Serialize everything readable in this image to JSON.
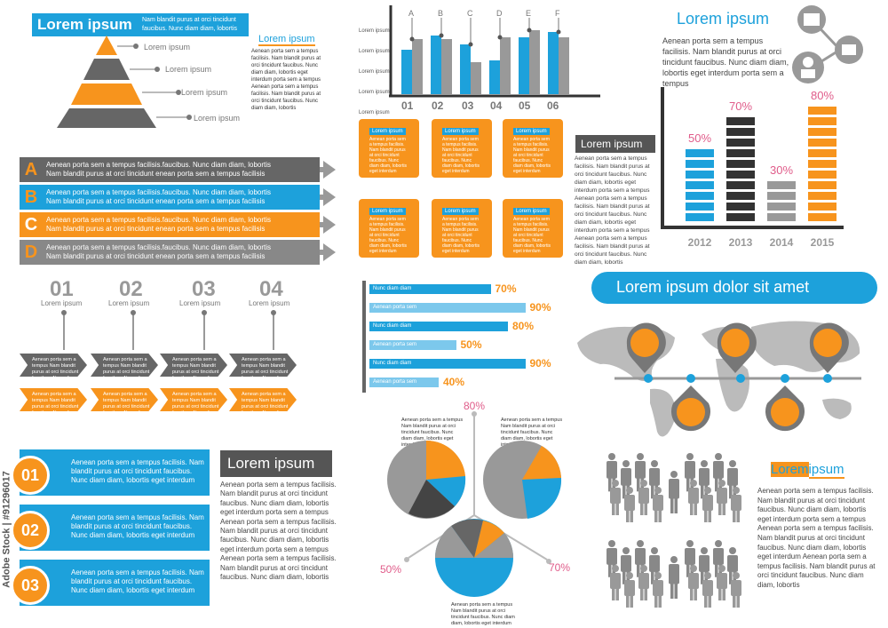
{
  "pyramid": {
    "header_title": "Lorem ipsum",
    "header_text": "Nam blandit purus at orci tincidunt faucibus. Nunc diam diam, lobortis",
    "labels": [
      "Lorem ipsum",
      "Lorem ipsum",
      "Lorem ipsum",
      "Lorem ipsum"
    ],
    "side_title": "Lorem ipsum",
    "side_text": "Aenean porta sem a tempus facilisis. Nam blandit purus at orci tincidunt faucibus. Nunc diam diam, lobortis eget interdum porta sem a tempus Aenean porta sem a tempus facilisis. Nam blandit purus at orci tincidunt faucibus. Nunc diam diam, lobortis"
  },
  "column_chart": {
    "y_labels": [
      "Lorem ipsum",
      "Lorem ipsum",
      "Lorem ipsum",
      "Lorem ipsum",
      "Lorem ipsum"
    ],
    "letters": [
      "A",
      "B",
      "C",
      "D",
      "E",
      "F"
    ],
    "categories": [
      "01",
      "02",
      "03",
      "04",
      "05",
      "06"
    ],
    "blue": [
      50,
      66,
      56,
      38,
      64,
      70
    ],
    "gray": [
      62,
      62,
      36,
      64,
      72,
      64
    ]
  },
  "abcd": {
    "rows": [
      {
        "letter": "A",
        "line1": "Aenean porta sem a tempus facilisis.faucibus. Nunc diam diam, lobortis",
        "line2": "Nam blandit purus at orci tincidunt  enean porta sem a tempus facilisis"
      },
      {
        "letter": "B",
        "line1": "Aenean porta sem a tempus facilisis.faucibus. Nunc diam diam, lobortis",
        "line2": "Nam blandit purus at orci tincidunt  enean porta sem a tempus facilisis"
      },
      {
        "letter": "C",
        "line1": "Aenean porta sem a tempus facilisis.faucibus. Nunc diam diam, lobortis",
        "line2": "Nam blandit purus at orci tincidunt  enean porta sem a tempus facilisis"
      },
      {
        "letter": "D",
        "line1": "Aenean porta sem a tempus facilisis.faucibus. Nunc diam diam, lobortis",
        "line2": "Nam blandit purus at orci tincidunt  enean porta sem a tempus facilisis"
      }
    ]
  },
  "scrolls": {
    "label": "Lorem ipsum",
    "text": "Aenean porta sem a tempus facilisis. Nam blandit purus at orci tincidunt faucibus. Nunc diam diam, lobortis eget interdum"
  },
  "mid_text": {
    "title": "Lorem ipsum",
    "body": "Aenean porta sem a tempus facilisis. Nam blandit purus at orci tincidunt faucibus. Nunc diam diam, lobortis eget interdum porta sem a tempus Aenean porta sem a tempus facilisis. Nam blandit purus at orci tincidunt faucibus. Nunc diam diam, lobortis eget interdum porta sem a tempus Aenean porta sem a tempus facilisis. Nam blandit purus at orci tincidunt faucibus. Nunc diam diam, lobortis"
  },
  "top_right": {
    "title": "Lorem ipsum",
    "text": "Aenean porta sem a tempus facilisis. Nam blandit purus at orci tincidunt faucibus. Nunc diam diam, lobortis eget interdum porta sem a tempus"
  },
  "year_chart": {
    "years": [
      "2012",
      "2013",
      "2014",
      "2015"
    ],
    "values": [
      50,
      70,
      30,
      80
    ],
    "labels": [
      "50%",
      "70%",
      "30%",
      "80%"
    ],
    "colors": [
      "#1da1db",
      "#333333",
      "#999999",
      "#f7941d"
    ]
  },
  "steps": {
    "numbers": [
      "01",
      "02",
      "03",
      "04"
    ],
    "labels": [
      "Lorem ipsum",
      "Lorem ipsum",
      "Lorem ipsum",
      "Lorem ipsum"
    ],
    "chevron_text": "Aenean porta sem a tempus Nam blandit purus at orci tincidunt faucibus. Nunc diam diam,"
  },
  "hbars": {
    "rows": [
      {
        "label": "Nunc diam diam",
        "value": 70,
        "pct": "70%",
        "color": "#1da1db"
      },
      {
        "label": "Aenean porta sem",
        "value": 90,
        "pct": "90%",
        "color": "#7cc8ec"
      },
      {
        "label": "Nunc diam diam",
        "value": 80,
        "pct": "80%",
        "color": "#1da1db"
      },
      {
        "label": "Aenean porta sem",
        "value": 50,
        "pct": "50%",
        "color": "#7cc8ec"
      },
      {
        "label": "Nunc diam diam",
        "value": 90,
        "pct": "90%",
        "color": "#1da1db"
      },
      {
        "label": "Aenean porta sem",
        "value": 40,
        "pct": "40%",
        "color": "#7cc8ec"
      }
    ]
  },
  "world": {
    "title": "Lorem ipsum dolor sit amet"
  },
  "numbered": {
    "items": [
      {
        "num": "01",
        "text": "Aenean porta sem a tempus facilisis. Nam blandit purus at orci tincidunt faucibus. Nunc diam diam, lobortis eget interdum"
      },
      {
        "num": "02",
        "text": "Aenean porta sem a tempus facilisis. Nam blandit purus at orci tincidunt faucibus. Nunc diam diam, lobortis eget interdum"
      },
      {
        "num": "03",
        "text": "Aenean porta sem a tempus facilisis. Nam blandit purus at orci tincidunt faucibus. Nunc diam diam, lobortis eget interdum"
      }
    ]
  },
  "bottom_text": {
    "title": "Lorem ipsum",
    "body": "Aenean porta sem a tempus facilisis. Nam blandit purus at orci tincidunt faucibus. Nunc diam diam, lobortis eget interdum porta sem a tempus Aenean porta sem a tempus facilisis. Nam blandit purus at orci tincidunt faucibus. Nunc diam diam, lobortis eget interdum porta sem a tempus Aenean porta sem a tempus facilisis. Nam blandit purus at orci tincidunt faucibus. Nunc diam diam, lobortis"
  },
  "pies": {
    "pct_top": "80%",
    "pct_left": "50%",
    "pct_right": "70%",
    "caption": "Aenean porta sem a tempus Nam blandit purus at orci tincidunt faucibus. Nunc diam diam, lobortis eget interdum"
  },
  "people_block": {
    "title_a": "Lorem",
    "title_b": "ipsum",
    "body": "Aenean porta sem a tempus facilisis. Nam blandit purus at orci tincidunt faucibus. Nunc diam diam, lobortis eget interdum porta sem a tempus Aenean porta sem a tempus facilisis. Nam blandit purus at orci tincidunt faucibus. Nunc diam diam, lobortis eget interdum Aenean porta sem a tempus facilisis. Nam blandit purus at orci tincidunt faucibus. Nunc diam diam, lobortis"
  },
  "watermark": {
    "side": "Adobe Stock | #91296017"
  }
}
